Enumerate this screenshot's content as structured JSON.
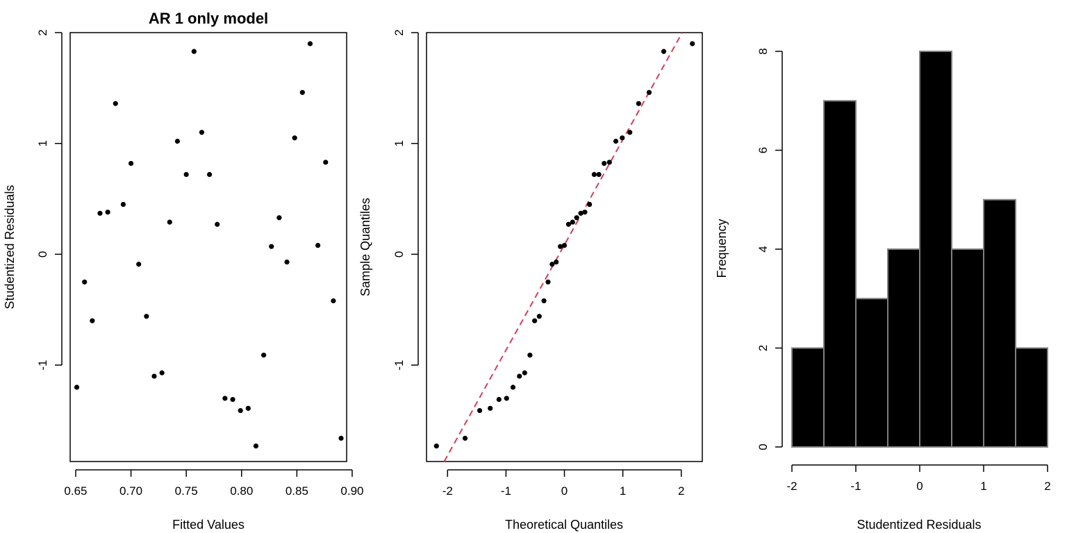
{
  "chart_data": [
    {
      "type": "scatter",
      "title": "AR 1 only model",
      "xlabel": "Fitted Values",
      "ylabel": "Studentized Residuals",
      "xlim": [
        0.645,
        0.895
      ],
      "ylim": [
        -1.87,
        2.0
      ],
      "xticks": [
        "0.65",
        "0.70",
        "0.75",
        "0.80",
        "0.85",
        "0.90"
      ],
      "xtick_values": [
        0.65,
        0.7,
        0.75,
        0.8,
        0.85,
        0.9
      ],
      "yticks": [
        "-1",
        "0",
        "1",
        "2"
      ],
      "ytick_values": [
        -1,
        0,
        1,
        2
      ],
      "points": [
        {
          "x": 0.651,
          "y": -1.2
        },
        {
          "x": 0.658,
          "y": -0.25
        },
        {
          "x": 0.665,
          "y": -0.6
        },
        {
          "x": 0.672,
          "y": 0.37
        },
        {
          "x": 0.679,
          "y": 0.38
        },
        {
          "x": 0.686,
          "y": 1.36
        },
        {
          "x": 0.693,
          "y": 0.45
        },
        {
          "x": 0.7,
          "y": 0.82
        },
        {
          "x": 0.707,
          "y": -0.09
        },
        {
          "x": 0.714,
          "y": -0.56
        },
        {
          "x": 0.721,
          "y": -1.1
        },
        {
          "x": 0.728,
          "y": -1.07
        },
        {
          "x": 0.735,
          "y": 0.29
        },
        {
          "x": 0.742,
          "y": 1.02
        },
        {
          "x": 0.75,
          "y": 0.72
        },
        {
          "x": 0.757,
          "y": 1.83
        },
        {
          "x": 0.764,
          "y": 1.1
        },
        {
          "x": 0.771,
          "y": 0.72
        },
        {
          "x": 0.778,
          "y": 0.27
        },
        {
          "x": 0.785,
          "y": -1.3
        },
        {
          "x": 0.792,
          "y": -1.31
        },
        {
          "x": 0.799,
          "y": -1.41
        },
        {
          "x": 0.806,
          "y": -1.39
        },
        {
          "x": 0.813,
          "y": -1.73
        },
        {
          "x": 0.82,
          "y": -0.91
        },
        {
          "x": 0.827,
          "y": 0.07
        },
        {
          "x": 0.834,
          "y": 0.33
        },
        {
          "x": 0.841,
          "y": -0.07
        },
        {
          "x": 0.848,
          "y": 1.05
        },
        {
          "x": 0.855,
          "y": 1.46
        },
        {
          "x": 0.862,
          "y": 1.9
        },
        {
          "x": 0.869,
          "y": 0.08
        },
        {
          "x": 0.876,
          "y": 0.83
        },
        {
          "x": 0.883,
          "y": -0.42
        },
        {
          "x": 0.89,
          "y": -1.66
        }
      ]
    },
    {
      "type": "scatter",
      "title": "",
      "xlabel": "Theoretical Quantiles",
      "ylabel": "Sample Quantiles",
      "xlim": [
        -2.36,
        2.36
      ],
      "ylim": [
        -1.87,
        2.0
      ],
      "xticks": [
        "-2",
        "-1",
        "0",
        "1",
        "2"
      ],
      "xtick_values": [
        -2,
        -1,
        0,
        1,
        2
      ],
      "yticks": [
        "-1",
        "0",
        "1",
        "2"
      ],
      "ytick_values": [
        -1,
        0,
        1,
        2
      ],
      "points": [
        {
          "x": -2.19,
          "y": -1.73
        },
        {
          "x": -1.7,
          "y": -1.66
        },
        {
          "x": -1.45,
          "y": -1.41
        },
        {
          "x": -1.27,
          "y": -1.39
        },
        {
          "x": -1.12,
          "y": -1.31
        },
        {
          "x": -0.99,
          "y": -1.3
        },
        {
          "x": -0.88,
          "y": -1.2
        },
        {
          "x": -0.77,
          "y": -1.1
        },
        {
          "x": -0.68,
          "y": -1.07
        },
        {
          "x": -0.59,
          "y": -0.91
        },
        {
          "x": -0.51,
          "y": -0.6
        },
        {
          "x": -0.43,
          "y": -0.56
        },
        {
          "x": -0.35,
          "y": -0.42
        },
        {
          "x": -0.28,
          "y": -0.25
        },
        {
          "x": -0.21,
          "y": -0.09
        },
        {
          "x": -0.14,
          "y": -0.07
        },
        {
          "x": -0.07,
          "y": 0.07
        },
        {
          "x": 0.0,
          "y": 0.08
        },
        {
          "x": 0.07,
          "y": 0.27
        },
        {
          "x": 0.14,
          "y": 0.29
        },
        {
          "x": 0.21,
          "y": 0.33
        },
        {
          "x": 0.28,
          "y": 0.37
        },
        {
          "x": 0.35,
          "y": 0.38
        },
        {
          "x": 0.43,
          "y": 0.45
        },
        {
          "x": 0.51,
          "y": 0.72
        },
        {
          "x": 0.59,
          "y": 0.72
        },
        {
          "x": 0.68,
          "y": 0.82
        },
        {
          "x": 0.77,
          "y": 0.83
        },
        {
          "x": 0.88,
          "y": 1.02
        },
        {
          "x": 0.99,
          "y": 1.05
        },
        {
          "x": 1.12,
          "y": 1.1
        },
        {
          "x": 1.27,
          "y": 1.36
        },
        {
          "x": 1.45,
          "y": 1.46
        },
        {
          "x": 1.7,
          "y": 1.83
        },
        {
          "x": 2.19,
          "y": 1.9
        }
      ],
      "reference_line": {
        "intercept": 0.085,
        "slope": 0.95,
        "style": "dashed",
        "color": "#d73a5a"
      }
    },
    {
      "type": "bar",
      "title": "",
      "xlabel": "Studentized Residuals",
      "ylabel": "Frequency",
      "xlim": [
        -2,
        2
      ],
      "ylim": [
        0,
        8
      ],
      "xticks": [
        "-2",
        "-1",
        "0",
        "1",
        "2"
      ],
      "xtick_values": [
        -2,
        -1,
        0,
        1,
        2
      ],
      "yticks": [
        "0",
        "2",
        "4",
        "6",
        "8"
      ],
      "ytick_values": [
        0,
        2,
        4,
        6,
        8
      ],
      "bin_edges": [
        -2,
        -1.5,
        -1,
        -0.5,
        0,
        0.5,
        1,
        1.5,
        2
      ],
      "values": [
        2,
        7,
        3,
        4,
        8,
        4,
        5,
        2
      ],
      "bar_fill": "#000000",
      "bar_border": "#808080"
    }
  ]
}
